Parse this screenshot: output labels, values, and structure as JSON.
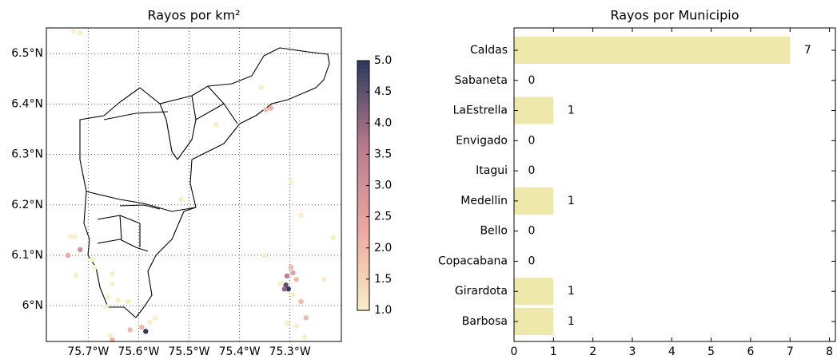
{
  "chart_data": [
    {
      "type": "scatter",
      "title": "Rayos por km²",
      "x": [
        -75.729,
        -75.716,
        -75.357,
        -75.348,
        -75.338,
        -75.446,
        -75.516,
        -75.298,
        -75.278,
        -75.735,
        -75.727,
        -75.74,
        -75.716,
        -75.692,
        -75.687,
        -75.724,
        -75.652,
        -75.652,
        -75.66,
        -75.641,
        -75.665,
        -75.621,
        -75.351,
        -75.298,
        -75.294,
        -75.306,
        -75.287,
        -75.319,
        -75.308,
        -75.303,
        -75.311,
        -75.294,
        -75.278,
        -75.268,
        -75.287,
        -75.306,
        -75.271,
        -75.232,
        -75.214,
        -75.657,
        -75.617,
        -75.594,
        -75.586,
        -75.578,
        -75.567,
        -75.652
      ],
      "y": [
        6.544,
        6.541,
        6.433,
        6.389,
        6.392,
        6.359,
        6.211,
        6.246,
        6.179,
        6.137,
        6.137,
        6.1,
        6.111,
        6.092,
        6.076,
        6.06,
        6.063,
        6.043,
        6.017,
        6.011,
        5.998,
        6.008,
        6.1,
        6.076,
        6.065,
        6.059,
        6.052,
        6.044,
        6.041,
        6.033,
        6.033,
        6.021,
        6.008,
        5.976,
        5.96,
        5.965,
        5.938,
        6.052,
        6.135,
        5.941,
        5.952,
        5.957,
        5.949,
        5.967,
        5.975,
        5.932
      ],
      "values": [
        1,
        1,
        1,
        2,
        2.2,
        1,
        1,
        1,
        1,
        1,
        1,
        2.3,
        3,
        1,
        1,
        1,
        1,
        1,
        1,
        1,
        1,
        1,
        1,
        2,
        2.5,
        3.5,
        2,
        1,
        4.5,
        5,
        4,
        1,
        2,
        2,
        1,
        1,
        1,
        1,
        1,
        1,
        2,
        2,
        5,
        1,
        1,
        2
      ],
      "xlim": [
        -75.783,
        -75.198
      ],
      "ylim": [
        5.929,
        6.551
      ],
      "xticks": [
        {
          "value": -75.7,
          "label": "75.7°W"
        },
        {
          "value": -75.6,
          "label": "75.6°W"
        },
        {
          "value": -75.5,
          "label": "75.5°W"
        },
        {
          "value": -75.4,
          "label": "75.4°W"
        },
        {
          "value": -75.3,
          "label": "75.3°W"
        }
      ],
      "yticks": [
        {
          "value": 6.0,
          "label": "6°N"
        },
        {
          "value": 6.1,
          "label": "6.1°N"
        },
        {
          "value": 6.2,
          "label": "6.2°N"
        },
        {
          "value": 6.3,
          "label": "6.3°N"
        },
        {
          "value": 6.4,
          "label": "6.4°N"
        },
        {
          "value": 6.5,
          "label": "6.5°N"
        }
      ],
      "grid": true,
      "colorbar": {
        "lim": [
          1,
          5
        ],
        "colors": [
          "#f8efc4",
          "#eca69f",
          "#b57a8d",
          "#2c3a5e"
        ],
        "ticks": [
          {
            "value": 1,
            "label": "1.0"
          },
          {
            "value": 1.5,
            "label": "1.5"
          },
          {
            "value": 2,
            "label": "2.0"
          },
          {
            "value": 2.5,
            "label": "2.5"
          },
          {
            "value": 3,
            "label": "3.0"
          },
          {
            "value": 3.5,
            "label": "3.5"
          },
          {
            "value": 4,
            "label": "4.0"
          },
          {
            "value": 4.5,
            "label": "4.5"
          },
          {
            "value": 5,
            "label": "5.0"
          }
        ]
      }
    },
    {
      "type": "barh",
      "title": "Rayos por Municipio",
      "categories": [
        "Caldas",
        "Sabaneta",
        "LaEstrella",
        "Envigado",
        "Itagui",
        "Medellin",
        "Bello",
        "Copacabana",
        "Girardota",
        "Barbosa"
      ],
      "values": [
        7,
        0,
        1,
        0,
        0,
        1,
        0,
        0,
        1,
        1
      ],
      "color": "#eee8aa",
      "xlim": [
        0,
        8.15
      ],
      "xticks": [
        0,
        1,
        2,
        3,
        4,
        5,
        6,
        7,
        8
      ]
    }
  ]
}
